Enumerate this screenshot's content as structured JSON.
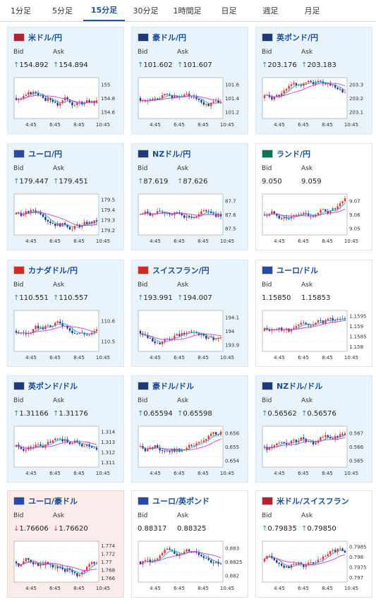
{
  "tabs": [
    "1分足",
    "5分足",
    "15分足",
    "30分足",
    "1時間足",
    "日足",
    "週足",
    "月足"
  ],
  "active_tab": 2,
  "labels": {
    "bid": "Bid",
    "ask": "Ask"
  },
  "time_labels": [
    "4:45",
    "6:45",
    "8:45",
    "10:45"
  ],
  "cards": [
    {
      "name": "米ドル/円",
      "flag": "us",
      "bid": "154.892",
      "ask": "154.894",
      "dir": "up",
      "bg": "blue",
      "ticks": [
        "155",
        "154.8",
        "154.6"
      ]
    },
    {
      "name": "豪ドル/円",
      "flag": "au",
      "bid": "101.602",
      "ask": "101.607",
      "dir": "up",
      "bg": "blue",
      "ticks": [
        "101.6",
        "101.4",
        "101.2"
      ]
    },
    {
      "name": "英ポンド/円",
      "flag": "gb",
      "bid": "203.176",
      "ask": "203.183",
      "dir": "up",
      "bg": "blue",
      "ticks": [
        "203.3",
        "203.2",
        "203.1"
      ]
    },
    {
      "name": "ユーロ/円",
      "flag": "eu",
      "bid": "179.447",
      "ask": "179.451",
      "dir": "up",
      "bg": "blue",
      "ticks": [
        "179.5",
        "179.4",
        "179.3",
        "179.2"
      ]
    },
    {
      "name": "NZドル/円",
      "flag": "nz",
      "bid": "87.619",
      "ask": "87.626",
      "dir": "up",
      "bg": "blue",
      "ticks": [
        "87.7",
        "87.6",
        "87.5"
      ]
    },
    {
      "name": "ランド/円",
      "flag": "za",
      "bid": "9.050",
      "ask": "9.059",
      "dir": "none",
      "bg": "white",
      "ticks": [
        "9.07",
        "9.06",
        "9.05"
      ]
    },
    {
      "name": "カナダドル/円",
      "flag": "ca",
      "bid": "110.551",
      "ask": "110.557",
      "dir": "up",
      "bg": "blue",
      "ticks": [
        "110.6",
        "110.5"
      ]
    },
    {
      "name": "スイスフラン/円",
      "flag": "ch",
      "bid": "193.991",
      "ask": "194.007",
      "dir": "up",
      "bg": "blue",
      "ticks": [
        "194.1",
        "194",
        "193.9"
      ]
    },
    {
      "name": "ユーロ/ドル",
      "flag": "eu",
      "bid": "1.15850",
      "ask": "1.15853",
      "dir": "none",
      "bg": "white",
      "ticks": [
        "1.1595",
        "1.159",
        "1.1585",
        "1.158"
      ]
    },
    {
      "name": "英ポンド/ドル",
      "flag": "gb",
      "bid": "1.31166",
      "ask": "1.31176",
      "dir": "up",
      "bg": "blue",
      "ticks": [
        "1.314",
        "1.313",
        "1.312",
        "1.311"
      ]
    },
    {
      "name": "豪ドル/ドル",
      "flag": "au",
      "bid": "0.65594",
      "ask": "0.65598",
      "dir": "up",
      "bg": "blue",
      "ticks": [
        "0.656",
        "0.655",
        "0.654"
      ]
    },
    {
      "name": "NZドル/ドル",
      "flag": "nz",
      "bid": "0.56562",
      "ask": "0.56576",
      "dir": "up",
      "bg": "blue",
      "ticks": [
        "0.567",
        "0.566",
        "0.565"
      ]
    },
    {
      "name": "ユーロ/豪ドル",
      "flag": "eu",
      "bid": "1.76606",
      "ask": "1.76620",
      "dir": "down",
      "bg": "pink",
      "ticks": [
        "1.774",
        "1.772",
        "1.77",
        "1.768",
        "1.766"
      ]
    },
    {
      "name": "ユーロ/英ポンド",
      "flag": "eu",
      "bid": "0.88317",
      "ask": "0.88325",
      "dir": "none",
      "bg": "white",
      "ticks": [
        "0.883",
        "0.8825",
        "0.882"
      ]
    },
    {
      "name": "米ドル/スイスフラン",
      "flag": "us",
      "bid": "0.79835",
      "ask": "0.79850",
      "dir": "up",
      "bg": "white",
      "ticks": [
        "0.7985",
        "0.798",
        "0.7975",
        "0.797"
      ]
    }
  ],
  "colors": {
    "accent": "#1a56a6",
    "up": "#1f8fa5",
    "down": "#e0332f",
    "candle_up": "#e53935",
    "candle_down": "#1e3a8a",
    "ma_short": "#21a8d8",
    "ma_long": "#cc3ccc"
  }
}
